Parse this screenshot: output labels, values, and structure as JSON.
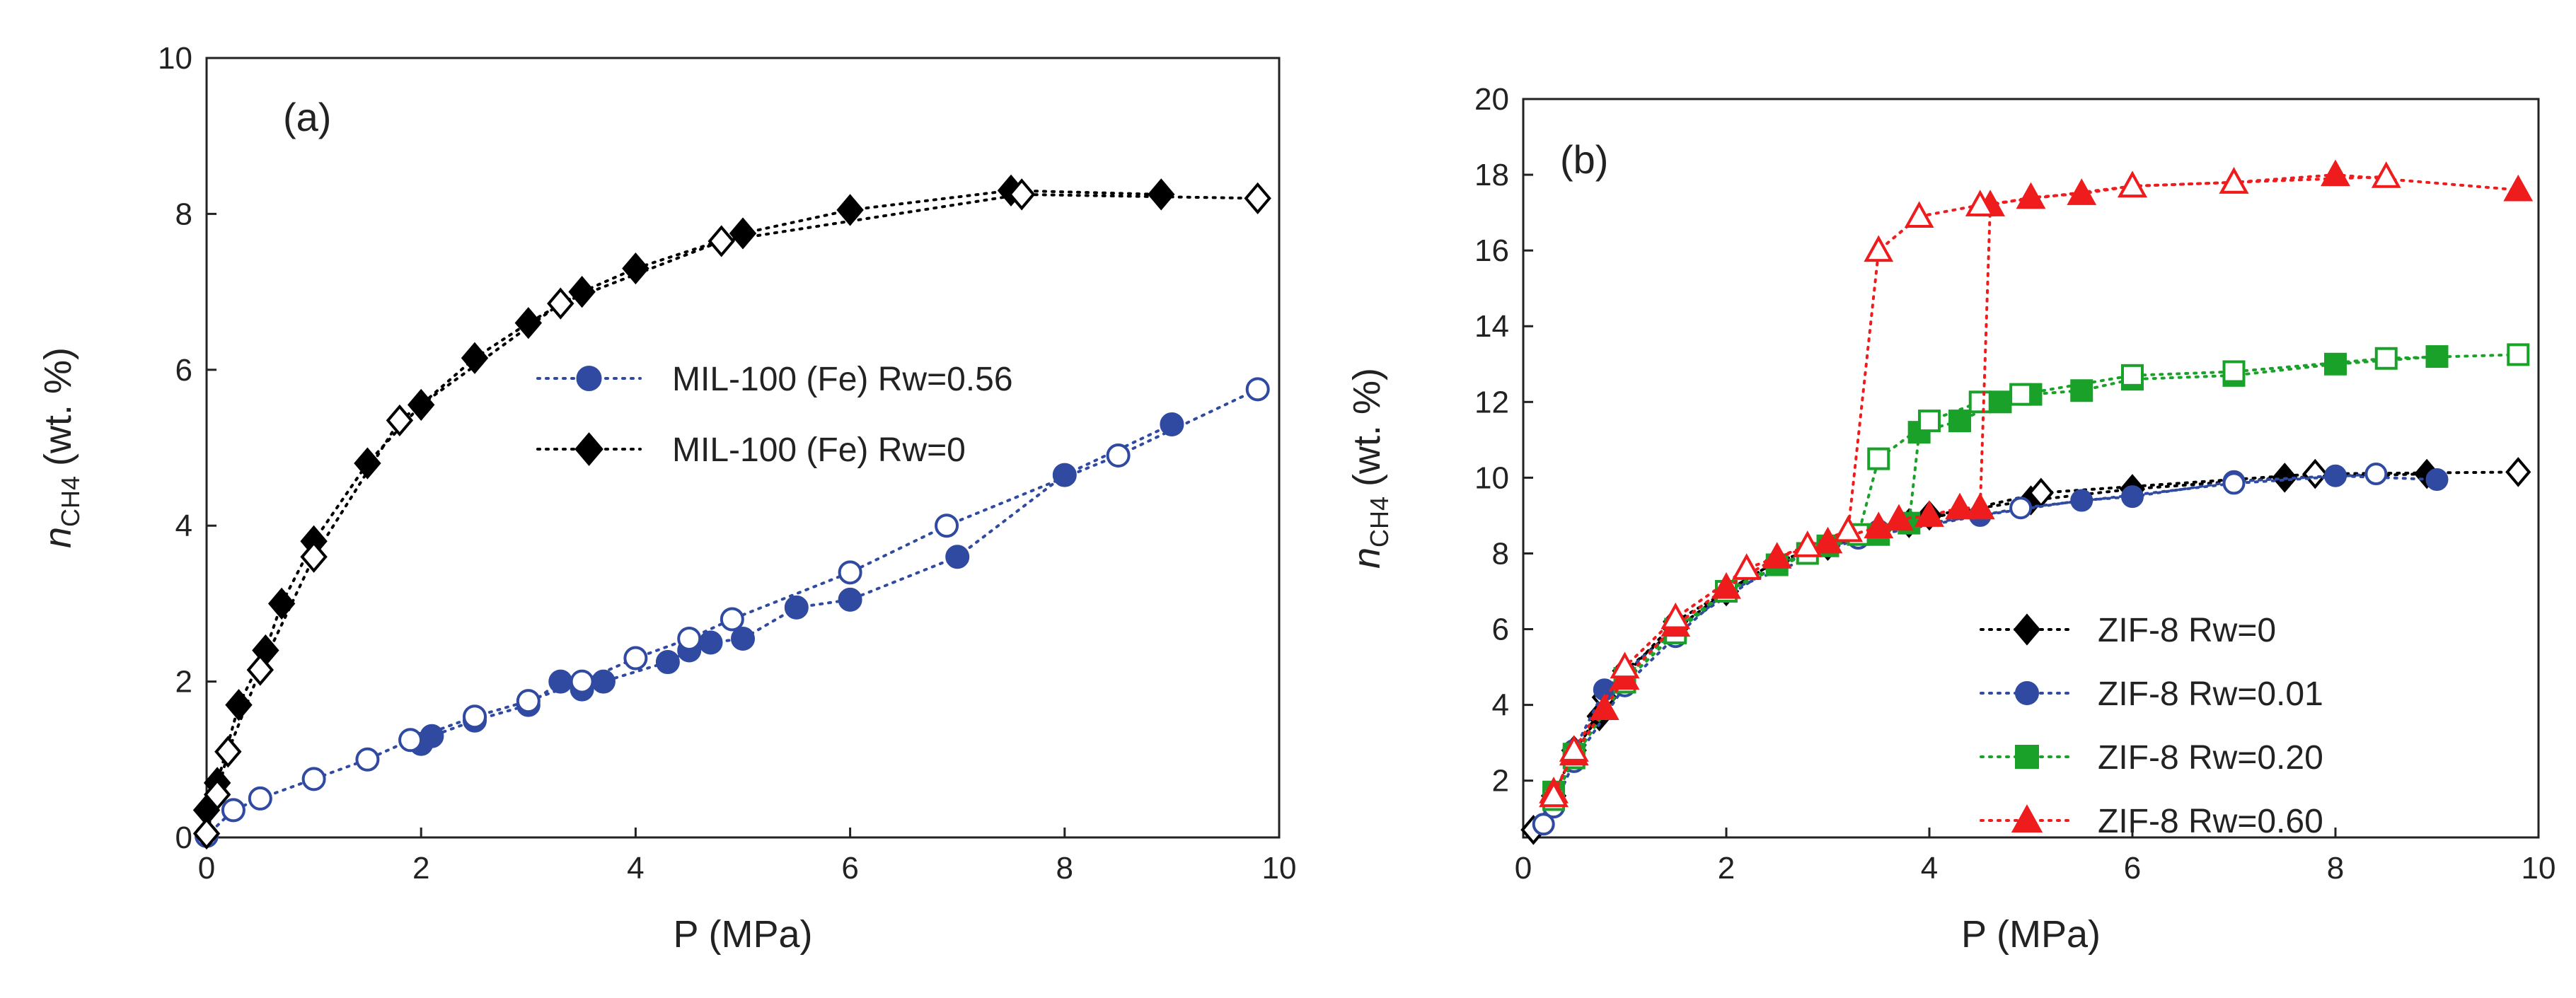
{
  "chart_data": [
    {
      "id": "a",
      "type": "scatter",
      "panel_label": "(a)",
      "xlabel": "P (MPa)",
      "ylabel_main": "n",
      "ylabel_sub": "CH4",
      "ylabel_rest": "(wt. %)",
      "xlim": [
        0,
        10
      ],
      "ylim": [
        0,
        10
      ],
      "xticks": [
        0,
        2,
        4,
        6,
        8,
        10
      ],
      "yticks": [
        0,
        2,
        4,
        6,
        8,
        10
      ],
      "legend_position": "middle-right",
      "series": [
        {
          "name": "MIL-100 (Fe)    Rw=0.56",
          "color": "#2f4aa0",
          "marker": "circle",
          "adsorption": [
            [
              2.0,
              1.2
            ],
            [
              2.1,
              1.3
            ],
            [
              2.5,
              1.5
            ],
            [
              3.0,
              1.7
            ],
            [
              3.3,
              2.0
            ],
            [
              3.5,
              1.9
            ],
            [
              3.7,
              2.0
            ],
            [
              4.3,
              2.25
            ],
            [
              4.5,
              2.4
            ],
            [
              4.7,
              2.5
            ],
            [
              5.0,
              2.55
            ],
            [
              5.5,
              2.95
            ],
            [
              6.0,
              3.05
            ],
            [
              7.0,
              3.6
            ],
            [
              8.0,
              4.65
            ],
            [
              9.0,
              5.3
            ]
          ],
          "desorption": [
            [
              9.8,
              5.75
            ],
            [
              8.5,
              4.9
            ],
            [
              6.9,
              4.0
            ],
            [
              6.0,
              3.4
            ],
            [
              4.9,
              2.8
            ],
            [
              4.5,
              2.55
            ],
            [
              4.0,
              2.3
            ],
            [
              3.5,
              2.0
            ],
            [
              3.0,
              1.75
            ],
            [
              2.5,
              1.55
            ],
            [
              1.9,
              1.25
            ],
            [
              1.5,
              1.0
            ],
            [
              1.0,
              0.75
            ],
            [
              0.5,
              0.5
            ],
            [
              0.25,
              0.35
            ],
            [
              0.0,
              0.02
            ]
          ]
        },
        {
          "name": "MIL-100 (Fe)    Rw=0",
          "color": "#000000",
          "marker": "diamond",
          "adsorption": [
            [
              0.0,
              0.35
            ],
            [
              0.1,
              0.7
            ],
            [
              0.3,
              1.7
            ],
            [
              0.55,
              2.4
            ],
            [
              0.7,
              3.0
            ],
            [
              1.0,
              3.8
            ],
            [
              1.5,
              4.8
            ],
            [
              2.0,
              5.55
            ],
            [
              2.5,
              6.15
            ],
            [
              3.0,
              6.6
            ],
            [
              3.5,
              7.0
            ],
            [
              4.0,
              7.3
            ],
            [
              5.0,
              7.75
            ],
            [
              6.0,
              8.05
            ],
            [
              7.5,
              8.3
            ],
            [
              8.9,
              8.25
            ]
          ],
          "desorption": [
            [
              9.8,
              8.2
            ],
            [
              7.6,
              8.25
            ],
            [
              4.8,
              7.65
            ],
            [
              3.3,
              6.85
            ],
            [
              1.8,
              5.35
            ],
            [
              1.0,
              3.6
            ],
            [
              0.5,
              2.15
            ],
            [
              0.2,
              1.1
            ],
            [
              0.1,
              0.55
            ],
            [
              0.0,
              0.05
            ]
          ]
        }
      ]
    },
    {
      "id": "b",
      "type": "scatter",
      "panel_label": "(b)",
      "xlabel": "P (MPa)",
      "ylabel_main": "n",
      "ylabel_sub": "CH4",
      "ylabel_rest": "(wt. %)",
      "xlim": [
        0,
        10
      ],
      "ylim": [
        0.5,
        20
      ],
      "xticks": [
        0,
        2,
        4,
        6,
        8,
        10
      ],
      "yticks": [
        2,
        4,
        6,
        8,
        10,
        12,
        14,
        16,
        18,
        20
      ],
      "legend_position": "lower-right",
      "series": [
        {
          "name": "ZIF-8 Rw=0",
          "color": "#000000",
          "marker": "diamond",
          "adsorption": [
            [
              0.3,
              1.6
            ],
            [
              0.5,
              2.8
            ],
            [
              0.75,
              3.7
            ],
            [
              1.0,
              4.9
            ],
            [
              1.5,
              6.0
            ],
            [
              2.0,
              7.0
            ],
            [
              2.5,
              7.8
            ],
            [
              3.0,
              8.2
            ],
            [
              3.5,
              8.6
            ],
            [
              4.0,
              9.0
            ],
            [
              5.0,
              9.4
            ],
            [
              6.0,
              9.7
            ],
            [
              7.5,
              10.0
            ],
            [
              8.9,
              10.1
            ]
          ],
          "desorption": [
            [
              9.8,
              10.15
            ],
            [
              7.8,
              10.1
            ],
            [
              5.1,
              9.6
            ],
            [
              3.8,
              8.8
            ],
            [
              2.5,
              7.8
            ],
            [
              1.5,
              6.2
            ],
            [
              0.8,
              4.2
            ],
            [
              0.3,
              1.5
            ],
            [
              0.1,
              0.7
            ]
          ]
        },
        {
          "name": "ZIF-8 Rw=0.01",
          "color": "#2f4aa0",
          "marker": "circle",
          "adsorption": [
            [
              0.5,
              2.8
            ],
            [
              0.8,
              4.4
            ],
            [
              1.5,
              6.0
            ],
            [
              2.5,
              7.7
            ],
            [
              3.5,
              8.6
            ],
            [
              4.5,
              9.0
            ],
            [
              5.5,
              9.4
            ],
            [
              6.0,
              9.5
            ],
            [
              7.0,
              9.9
            ],
            [
              8.0,
              10.05
            ],
            [
              9.0,
              9.95
            ]
          ],
          "desorption": [
            [
              8.4,
              10.1
            ],
            [
              7.0,
              9.85
            ],
            [
              4.9,
              9.2
            ],
            [
              3.3,
              8.4
            ],
            [
              2.0,
              7.0
            ],
            [
              1.5,
              5.8
            ],
            [
              1.0,
              4.5
            ],
            [
              0.5,
              2.5
            ],
            [
              0.3,
              1.3
            ],
            [
              0.2,
              0.85
            ]
          ]
        },
        {
          "name": "ZIF-8 Rw=0.20",
          "color": "#1aa12a",
          "marker": "square",
          "adsorption": [
            [
              0.3,
              1.7
            ],
            [
              0.5,
              2.7
            ],
            [
              1.0,
              4.7
            ],
            [
              1.5,
              6.0
            ],
            [
              2.0,
              7.0
            ],
            [
              2.5,
              7.7
            ],
            [
              3.0,
              8.2
            ],
            [
              3.5,
              8.5
            ],
            [
              3.8,
              8.8
            ],
            [
              3.9,
              11.2
            ],
            [
              4.3,
              11.5
            ],
            [
              4.7,
              12.0
            ],
            [
              5.0,
              12.2
            ],
            [
              5.5,
              12.3
            ],
            [
              6.0,
              12.6
            ],
            [
              7.0,
              12.7
            ],
            [
              8.0,
              13.0
            ],
            [
              9.0,
              13.2
            ]
          ],
          "desorption": [
            [
              9.8,
              13.25
            ],
            [
              8.5,
              13.15
            ],
            [
              7.0,
              12.8
            ],
            [
              6.0,
              12.7
            ],
            [
              4.9,
              12.2
            ],
            [
              4.5,
              12.0
            ],
            [
              4.0,
              11.5
            ],
            [
              3.5,
              10.5
            ],
            [
              3.3,
              8.5
            ],
            [
              2.8,
              8.0
            ],
            [
              2.0,
              7.0
            ],
            [
              1.5,
              5.9
            ],
            [
              1.0,
              4.6
            ],
            [
              0.5,
              2.6
            ],
            [
              0.3,
              1.5
            ]
          ]
        },
        {
          "name": "ZIF-8 Rw=0.60",
          "color": "#ee1c1c",
          "marker": "triangle",
          "adsorption": [
            [
              0.3,
              1.7
            ],
            [
              0.5,
              2.7
            ],
            [
              0.8,
              3.9
            ],
            [
              1.0,
              4.7
            ],
            [
              1.5,
              6.1
            ],
            [
              2.0,
              7.1
            ],
            [
              2.5,
              7.9
            ],
            [
              3.0,
              8.3
            ],
            [
              3.5,
              8.7
            ],
            [
              3.7,
              8.9
            ],
            [
              4.0,
              9.0
            ],
            [
              4.3,
              9.2
            ],
            [
              4.5,
              9.2
            ],
            [
              4.6,
              17.2
            ],
            [
              5.0,
              17.4
            ],
            [
              5.5,
              17.5
            ],
            [
              6.0,
              17.7
            ],
            [
              7.0,
              17.8
            ],
            [
              8.0,
              18.0
            ],
            [
              9.8,
              17.6
            ]
          ],
          "desorption": [
            [
              8.5,
              17.95
            ],
            [
              7.0,
              17.8
            ],
            [
              6.0,
              17.7
            ],
            [
              4.5,
              17.2
            ],
            [
              3.9,
              16.9
            ],
            [
              3.5,
              16.0
            ],
            [
              3.2,
              8.6
            ],
            [
              2.8,
              8.2
            ],
            [
              2.2,
              7.6
            ],
            [
              1.5,
              6.3
            ],
            [
              1.0,
              5.0
            ],
            [
              0.5,
              2.8
            ],
            [
              0.3,
              1.6
            ]
          ]
        }
      ]
    }
  ]
}
